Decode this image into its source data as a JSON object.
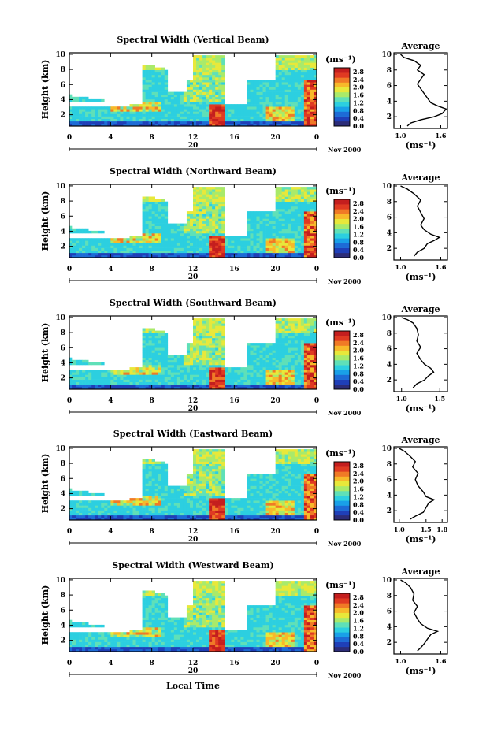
{
  "chart_data": {
    "type": "heatmap",
    "colorbar_unit": "(ms⁻¹)",
    "colorbar_ticks": [
      "0.0",
      "0.4",
      "0.8",
      "1.2",
      "1.6",
      "2.0",
      "2.4",
      "2.8"
    ],
    "colorbar_range": [
      0.0,
      3.0
    ],
    "x_ticks": [
      "0",
      "4",
      "8",
      "12",
      "16",
      "20",
      "0"
    ],
    "x_range_hours": [
      0,
      24
    ],
    "date_marker": "20",
    "date_label": "Nov 2000",
    "xlabel": "Local Time",
    "ylabel": "Height (km)",
    "y_ticks": [
      "2",
      "4",
      "6",
      "8",
      "10"
    ],
    "y_range_km": [
      0.5,
      10.2
    ],
    "profile_title": "Average",
    "profile_xlabel": "(ms⁻¹)",
    "colors": {
      "scale": [
        "#2c2c78",
        "#1f3fb8",
        "#1d6bd6",
        "#19a0e8",
        "#2ccfe0",
        "#5fe0b8",
        "#a9ea6a",
        "#e8e83a",
        "#f7b92a",
        "#f07a26",
        "#e03a22",
        "#c41e1e"
      ]
    },
    "panels": [
      {
        "title": "Spectral Width (Vertical Beam)",
        "profile_xticks": [
          "1.0",
          "1.6"
        ],
        "profile_xrange": [
          0.9,
          1.7
        ],
        "profile": [
          [
            1.0,
            10.0
          ],
          [
            1.05,
            9.6
          ],
          [
            1.2,
            9.2
          ],
          [
            1.3,
            8.6
          ],
          [
            1.25,
            8.0
          ],
          [
            1.35,
            7.4
          ],
          [
            1.3,
            6.8
          ],
          [
            1.25,
            6.2
          ],
          [
            1.3,
            5.6
          ],
          [
            1.35,
            5.0
          ],
          [
            1.4,
            4.4
          ],
          [
            1.45,
            3.8
          ],
          [
            1.55,
            3.4
          ],
          [
            1.68,
            3.0
          ],
          [
            1.62,
            2.4
          ],
          [
            1.5,
            2.0
          ],
          [
            1.3,
            1.6
          ],
          [
            1.15,
            1.2
          ],
          [
            1.1,
            0.8
          ]
        ]
      },
      {
        "title": "Spectral Width (Northward Beam)",
        "profile_xticks": [
          "1.0",
          "1.6"
        ],
        "profile_xrange": [
          0.9,
          1.7
        ],
        "profile": [
          [
            1.0,
            10.0
          ],
          [
            1.1,
            9.6
          ],
          [
            1.2,
            9.0
          ],
          [
            1.3,
            8.2
          ],
          [
            1.25,
            7.4
          ],
          [
            1.3,
            6.6
          ],
          [
            1.35,
            5.8
          ],
          [
            1.3,
            5.0
          ],
          [
            1.35,
            4.4
          ],
          [
            1.45,
            3.8
          ],
          [
            1.58,
            3.4
          ],
          [
            1.5,
            3.0
          ],
          [
            1.4,
            2.6
          ],
          [
            1.35,
            2.0
          ],
          [
            1.25,
            1.5
          ],
          [
            1.2,
            1.0
          ]
        ]
      },
      {
        "title": "Spectral Width (Southward Beam)",
        "profile_xticks": [
          "1.0",
          "1.5"
        ],
        "profile_xrange": [
          0.9,
          1.6
        ],
        "profile": [
          [
            1.0,
            10.0
          ],
          [
            1.08,
            9.7
          ],
          [
            1.15,
            9.3
          ],
          [
            1.2,
            8.6
          ],
          [
            1.22,
            7.8
          ],
          [
            1.2,
            7.0
          ],
          [
            1.25,
            6.2
          ],
          [
            1.2,
            5.4
          ],
          [
            1.25,
            4.6
          ],
          [
            1.3,
            4.0
          ],
          [
            1.38,
            3.5
          ],
          [
            1.42,
            3.0
          ],
          [
            1.35,
            2.5
          ],
          [
            1.3,
            2.0
          ],
          [
            1.2,
            1.5
          ],
          [
            1.15,
            1.0
          ]
        ]
      },
      {
        "title": "Spectral Width (Eastward Beam)",
        "profile_xticks": [
          "1.0",
          "1.5",
          "1.8"
        ],
        "profile_xrange": [
          0.9,
          1.9
        ],
        "profile": [
          [
            1.0,
            10.0
          ],
          [
            1.1,
            9.6
          ],
          [
            1.2,
            9.0
          ],
          [
            1.3,
            8.3
          ],
          [
            1.25,
            7.6
          ],
          [
            1.35,
            6.8
          ],
          [
            1.3,
            6.0
          ],
          [
            1.35,
            5.2
          ],
          [
            1.45,
            4.4
          ],
          [
            1.5,
            3.8
          ],
          [
            1.65,
            3.4
          ],
          [
            1.55,
            3.0
          ],
          [
            1.5,
            2.4
          ],
          [
            1.45,
            1.8
          ],
          [
            1.3,
            1.3
          ],
          [
            1.2,
            0.9
          ]
        ]
      },
      {
        "title": "Spectral Width (Westward Beam)",
        "profile_xticks": [
          "1.0",
          "1.6"
        ],
        "profile_xrange": [
          0.9,
          1.7
        ],
        "profile": [
          [
            1.0,
            10.0
          ],
          [
            1.08,
            9.6
          ],
          [
            1.15,
            9.0
          ],
          [
            1.2,
            8.2
          ],
          [
            1.18,
            7.4
          ],
          [
            1.25,
            6.6
          ],
          [
            1.2,
            5.8
          ],
          [
            1.25,
            5.0
          ],
          [
            1.3,
            4.4
          ],
          [
            1.4,
            3.8
          ],
          [
            1.55,
            3.4
          ],
          [
            1.45,
            3.0
          ],
          [
            1.4,
            2.4
          ],
          [
            1.35,
            1.8
          ],
          [
            1.3,
            1.3
          ],
          [
            1.25,
            0.9
          ]
        ]
      }
    ]
  }
}
